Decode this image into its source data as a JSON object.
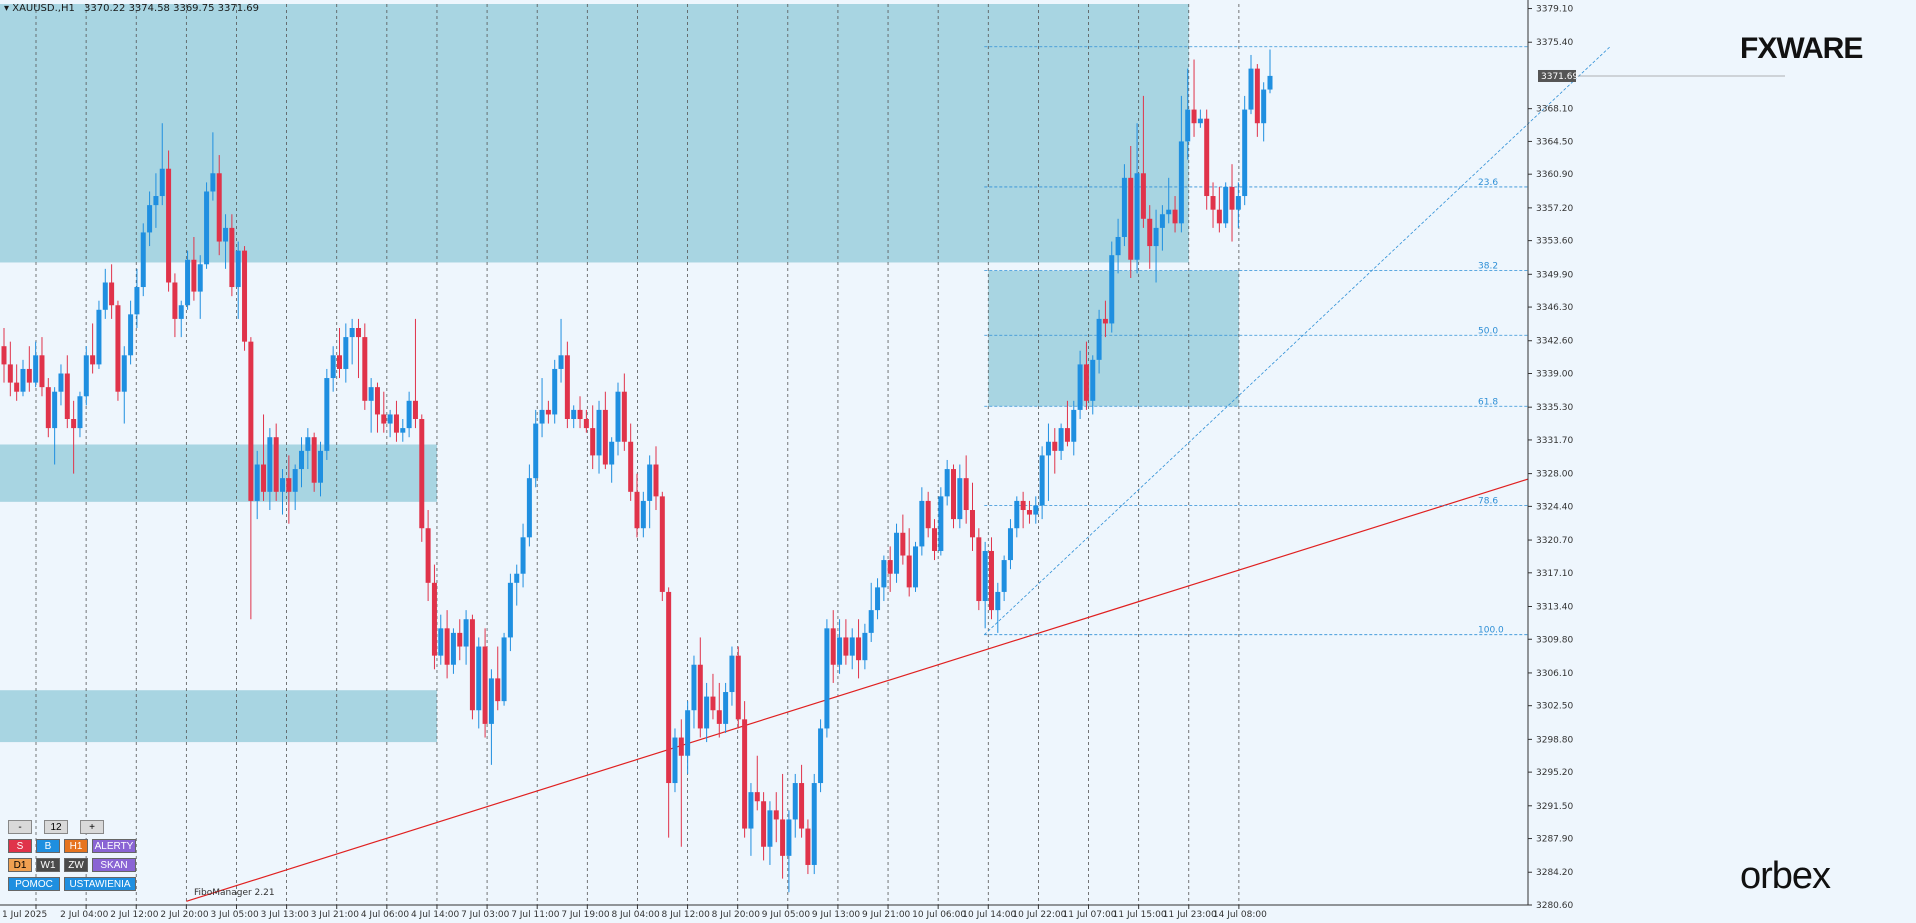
{
  "header": {
    "symbol": "XAUUSD.,H1",
    "ohlc": "3370.22 3374.58 3369.75 3371.69"
  },
  "branding": {
    "top_logo": "FXWARE",
    "bottom_logo": "orbex",
    "indicator": "FiboManager 2.21"
  },
  "controls": {
    "row1": [
      "-",
      "12",
      "+"
    ],
    "row2": [
      "S",
      "B",
      "H1",
      "ALERTY"
    ],
    "row3": [
      "D1",
      "W1",
      "ZW",
      "SKAN"
    ],
    "row4": [
      "POMOC",
      "USTAWIENIA"
    ]
  },
  "colors": {
    "bull": "#1f8fe0",
    "bear": "#e0334a",
    "zone": "#a8d5e2",
    "trendline": "#e02020",
    "fib": "#2e8fd6",
    "background": "#eef6fd"
  },
  "chart_data": {
    "type": "candlestick",
    "ylim": [
      3280.6,
      3379.6
    ],
    "y_ticks": [
      "3379.10",
      "3375.40",
      "3371.69",
      "3368.10",
      "3364.50",
      "3360.90",
      "3357.20",
      "3353.60",
      "3349.90",
      "3346.30",
      "3342.60",
      "3339.00",
      "3335.30",
      "3331.70",
      "3328.00",
      "3324.40",
      "3320.70",
      "3317.10",
      "3313.40",
      "3309.80",
      "3306.10",
      "3302.50",
      "3298.80",
      "3295.20",
      "3291.50",
      "3287.90",
      "3284.20",
      "3280.60"
    ],
    "current_price": "3371.69",
    "x_labels": [
      "1 Jul 2025",
      "2 Jul 04:00",
      "2 Jul 12:00",
      "2 Jul 20:00",
      "3 Jul 05:00",
      "3 Jul 13:00",
      "3 Jul 21:00",
      "4 Jul 06:00",
      "4 Jul 14:00",
      "7 Jul 03:00",
      "7 Jul 11:00",
      "7 Jul 19:00",
      "8 Jul 04:00",
      "8 Jul 12:00",
      "8 Jul 20:00",
      "9 Jul 05:00",
      "9 Jul 13:00",
      "9 Jul 21:00",
      "10 Jul 06:00",
      "10 Jul 14:00",
      "10 Jul 22:00",
      "11 Jul 07:00",
      "11 Jul 15:00",
      "11 Jul 23:00",
      "14 Jul 08:00"
    ],
    "fib_levels": [
      {
        "label": "23.6",
        "price": 3359.5
      },
      {
        "label": "38.2",
        "price": 3350.3
      },
      {
        "label": "50.0",
        "price": 3343.2
      },
      {
        "label": "61.8",
        "price": 3335.4
      },
      {
        "label": "78.6",
        "price": 3324.5
      },
      {
        "label": "100.0",
        "price": 3310.3
      }
    ],
    "fib_top_price": 3374.9,
    "zones": [
      {
        "from_price": 3351.2,
        "to_price": 3379.6,
        "start_label": "1 Jul 2025",
        "end_label": "11 Jul 23:00"
      },
      {
        "from_price": 3335.4,
        "to_price": 3350.3,
        "start_label": "10 Jul 14:00",
        "end_label": "14 Jul 08:00"
      },
      {
        "from_price": 3324.9,
        "to_price": 3331.2,
        "start_label": "1 Jul 2025",
        "end_label": "4 Jul 14:00"
      },
      {
        "from_price": 3298.5,
        "to_price": 3304.2,
        "start_label": "1 Jul 2025",
        "end_label": "4 Jul 14:00"
      }
    ],
    "trendline": {
      "start_price": 3281.0,
      "start_label": "2 Jul 20:00",
      "end_price": 3327.4
    },
    "candles": [
      [
        3342.0,
        3344.0,
        3338.0,
        3340.0
      ],
      [
        3340.0,
        3342.5,
        3336.5,
        3338.0
      ],
      [
        3338.0,
        3340.0,
        3336.0,
        3337.0
      ],
      [
        3337.0,
        3340.5,
        3336.5,
        3339.5
      ],
      [
        3339.5,
        3342.0,
        3337.0,
        3338.0
      ],
      [
        3338.0,
        3342.5,
        3337.5,
        3341.0
      ],
      [
        3341.0,
        3343.0,
        3336.5,
        3337.5
      ],
      [
        3337.5,
        3338.5,
        3332.0,
        3333.0
      ],
      [
        3333.0,
        3337.5,
        3329.0,
        3337.0
      ],
      [
        3337.0,
        3340.0,
        3335.5,
        3339.0
      ],
      [
        3339.0,
        3341.0,
        3333.0,
        3334.0
      ],
      [
        3334.0,
        3336.0,
        3328.0,
        3333.0
      ],
      [
        3333.0,
        3337.0,
        3332.0,
        3336.5
      ],
      [
        3336.5,
        3342.0,
        3335.5,
        3341.0
      ],
      [
        3341.0,
        3344.5,
        3339.0,
        3340.0
      ],
      [
        3340.0,
        3347.0,
        3339.5,
        3346.0
      ],
      [
        3346.0,
        3350.5,
        3345.0,
        3349.0
      ],
      [
        3349.0,
        3351.0,
        3345.0,
        3346.5
      ],
      [
        3346.5,
        3347.0,
        3336.0,
        3337.0
      ],
      [
        3337.0,
        3342.0,
        3333.5,
        3341.0
      ],
      [
        3341.0,
        3347.0,
        3340.0,
        3345.5
      ],
      [
        3345.5,
        3350.5,
        3344.0,
        3348.5
      ],
      [
        3348.5,
        3355.5,
        3347.5,
        3354.5
      ],
      [
        3354.5,
        3359.0,
        3353.0,
        3357.5
      ],
      [
        3357.5,
        3361.0,
        3355.0,
        3358.5
      ],
      [
        3358.5,
        3366.5,
        3357.5,
        3361.5
      ],
      [
        3361.5,
        3363.5,
        3348.0,
        3349.0
      ],
      [
        3349.0,
        3350.0,
        3343.0,
        3345.0
      ],
      [
        3345.0,
        3347.0,
        3343.0,
        3346.5
      ],
      [
        3346.5,
        3352.5,
        3346.0,
        3351.5
      ],
      [
        3351.5,
        3354.0,
        3347.0,
        3348.0
      ],
      [
        3348.0,
        3352.0,
        3345.0,
        3351.0
      ],
      [
        3351.0,
        3360.0,
        3350.5,
        3359.0
      ],
      [
        3359.0,
        3365.5,
        3358.0,
        3361.0
      ],
      [
        3361.0,
        3363.0,
        3352.0,
        3353.5
      ],
      [
        3353.5,
        3356.5,
        3350.5,
        3355.0
      ],
      [
        3355.0,
        3356.5,
        3347.5,
        3348.5
      ],
      [
        3348.5,
        3353.5,
        3345.0,
        3352.5
      ],
      [
        3352.5,
        3353.0,
        3341.5,
        3342.5
      ],
      [
        3342.5,
        3343.0,
        3312.0,
        3325.0
      ],
      [
        3325.0,
        3330.5,
        3323.0,
        3329.0
      ],
      [
        3329.0,
        3334.5,
        3325.0,
        3326.0
      ],
      [
        3326.0,
        3333.0,
        3324.0,
        3332.0
      ],
      [
        3332.0,
        3333.5,
        3325.0,
        3326.0
      ],
      [
        3326.0,
        3328.5,
        3323.5,
        3327.5
      ],
      [
        3327.5,
        3330.0,
        3322.5,
        3326.0
      ],
      [
        3326.0,
        3329.0,
        3324.0,
        3328.5
      ],
      [
        3328.5,
        3332.0,
        3326.5,
        3330.5
      ],
      [
        3330.5,
        3333.0,
        3328.5,
        3332.0
      ],
      [
        3332.0,
        3332.5,
        3326.0,
        3327.0
      ],
      [
        3327.0,
        3331.5,
        3325.5,
        3330.5
      ],
      [
        3330.5,
        3339.5,
        3329.5,
        3338.5
      ],
      [
        3338.5,
        3342.0,
        3337.0,
        3341.0
      ],
      [
        3341.0,
        3344.0,
        3338.5,
        3339.5
      ],
      [
        3339.5,
        3344.5,
        3338.0,
        3343.0
      ],
      [
        3343.0,
        3345.0,
        3340.0,
        3344.0
      ],
      [
        3344.0,
        3345.0,
        3338.5,
        3343.0
      ],
      [
        3343.0,
        3344.5,
        3335.0,
        3336.0
      ],
      [
        3336.0,
        3338.5,
        3332.5,
        3337.5
      ],
      [
        3337.5,
        3338.0,
        3332.5,
        3334.5
      ],
      [
        3334.5,
        3337.0,
        3332.5,
        3333.5
      ],
      [
        3333.5,
        3335.0,
        3332.0,
        3334.5
      ],
      [
        3334.5,
        3336.0,
        3331.5,
        3332.5
      ],
      [
        3332.5,
        3334.0,
        3331.5,
        3333.0
      ],
      [
        3333.0,
        3337.0,
        3332.0,
        3336.0
      ],
      [
        3336.0,
        3345.0,
        3333.0,
        3334.0
      ],
      [
        3334.0,
        3334.5,
        3320.5,
        3322.0
      ],
      [
        3322.0,
        3324.0,
        3314.0,
        3316.0
      ],
      [
        3316.0,
        3318.0,
        3306.5,
        3308.0
      ],
      [
        3308.0,
        3312.5,
        3307.0,
        3311.0
      ],
      [
        3311.0,
        3313.0,
        3305.5,
        3307.0
      ],
      [
        3307.0,
        3311.0,
        3306.0,
        3310.5
      ],
      [
        3310.5,
        3312.0,
        3307.5,
        3309.0
      ],
      [
        3309.0,
        3313.0,
        3307.0,
        3312.0
      ],
      [
        3312.0,
        3312.5,
        3301.0,
        3302.0
      ],
      [
        3302.0,
        3310.0,
        3300.0,
        3309.0
      ],
      [
        3309.0,
        3311.0,
        3299.0,
        3300.5
      ],
      [
        3300.5,
        3306.5,
        3296.0,
        3305.5
      ],
      [
        3305.5,
        3309.0,
        3302.0,
        3303.0
      ],
      [
        3303.0,
        3310.5,
        3302.5,
        3310.0
      ],
      [
        3310.0,
        3317.0,
        3308.5,
        3316.0
      ],
      [
        3316.0,
        3318.0,
        3313.5,
        3317.0
      ],
      [
        3317.0,
        3322.5,
        3315.5,
        3321.0
      ],
      [
        3321.0,
        3329.0,
        3320.0,
        3327.5
      ],
      [
        3327.5,
        3335.0,
        3326.5,
        3333.5
      ],
      [
        3333.5,
        3338.5,
        3332.0,
        3335.0
      ],
      [
        3335.0,
        3336.0,
        3333.5,
        3334.5
      ],
      [
        3334.5,
        3340.5,
        3333.5,
        3339.5
      ],
      [
        3339.5,
        3345.0,
        3338.0,
        3341.0
      ],
      [
        3341.0,
        3342.5,
        3333.0,
        3334.0
      ],
      [
        3334.0,
        3335.5,
        3333.0,
        3335.0
      ],
      [
        3335.0,
        3336.5,
        3333.0,
        3334.0
      ],
      [
        3334.0,
        3335.0,
        3332.5,
        3333.0
      ],
      [
        3333.0,
        3335.5,
        3328.5,
        3330.0
      ],
      [
        3330.0,
        3336.0,
        3328.0,
        3335.0
      ],
      [
        3335.0,
        3337.0,
        3328.5,
        3329.0
      ],
      [
        3329.0,
        3332.0,
        3327.0,
        3331.5
      ],
      [
        3331.5,
        3338.0,
        3330.0,
        3337.0
      ],
      [
        3337.0,
        3339.0,
        3330.5,
        3331.5
      ],
      [
        3331.5,
        3333.5,
        3325.0,
        3326.0
      ],
      [
        3326.0,
        3328.0,
        3321.0,
        3322.0
      ],
      [
        3322.0,
        3326.0,
        3321.0,
        3325.0
      ],
      [
        3325.0,
        3330.0,
        3322.0,
        3329.0
      ],
      [
        3329.0,
        3331.0,
        3324.0,
        3325.5
      ],
      [
        3325.5,
        3326.0,
        3314.0,
        3315.0
      ],
      [
        3315.0,
        3315.5,
        3288.0,
        3294.0
      ],
      [
        3294.0,
        3300.0,
        3293.0,
        3299.0
      ],
      [
        3299.0,
        3301.0,
        3287.0,
        3297.0
      ],
      [
        3297.0,
        3303.0,
        3295.0,
        3302.0
      ],
      [
        3302.0,
        3308.0,
        3300.0,
        3307.0
      ],
      [
        3307.0,
        3310.0,
        3299.0,
        3300.0
      ],
      [
        3300.0,
        3305.0,
        3298.5,
        3303.5
      ],
      [
        3303.5,
        3306.0,
        3301.0,
        3302.0
      ],
      [
        3302.0,
        3305.0,
        3299.0,
        3300.5
      ],
      [
        3300.5,
        3305.0,
        3299.5,
        3304.0
      ],
      [
        3304.0,
        3309.0,
        3302.5,
        3308.0
      ],
      [
        3308.0,
        3309.0,
        3300.0,
        3301.0
      ],
      [
        3301.0,
        3303.0,
        3288.0,
        3289.0
      ],
      [
        3289.0,
        3294.0,
        3286.0,
        3293.0
      ],
      [
        3293.0,
        3297.0,
        3291.0,
        3292.0
      ],
      [
        3292.0,
        3293.0,
        3285.5,
        3287.0
      ],
      [
        3287.0,
        3292.0,
        3285.0,
        3291.0
      ],
      [
        3291.0,
        3293.0,
        3287.5,
        3290.0
      ],
      [
        3290.0,
        3295.0,
        3283.5,
        3286.0
      ],
      [
        3286.0,
        3291.0,
        3282.0,
        3290.0
      ],
      [
        3290.0,
        3295.0,
        3288.0,
        3294.0
      ],
      [
        3294.0,
        3296.0,
        3288.0,
        3289.0
      ],
      [
        3289.0,
        3290.0,
        3284.0,
        3285.0
      ],
      [
        3285.0,
        3295.0,
        3284.0,
        3294.0
      ],
      [
        3294.0,
        3301.0,
        3293.0,
        3300.0
      ],
      [
        3300.0,
        3312.0,
        3299.0,
        3311.0
      ],
      [
        3311.0,
        3313.0,
        3305.0,
        3307.0
      ],
      [
        3307.0,
        3312.0,
        3306.0,
        3310.0
      ],
      [
        3310.0,
        3312.0,
        3307.0,
        3308.0
      ],
      [
        3308.0,
        3311.0,
        3306.5,
        3310.0
      ],
      [
        3310.0,
        3312.0,
        3305.5,
        3307.5
      ],
      [
        3307.5,
        3311.5,
        3306.5,
        3310.5
      ],
      [
        3310.5,
        3316.0,
        3309.5,
        3313.0
      ],
      [
        3313.0,
        3316.5,
        3312.0,
        3315.5
      ],
      [
        3315.5,
        3319.0,
        3314.0,
        3318.5
      ],
      [
        3318.5,
        3320.0,
        3315.0,
        3317.0
      ],
      [
        3317.0,
        3322.5,
        3316.0,
        3321.5
      ],
      [
        3321.5,
        3323.5,
        3318.0,
        3319.0
      ],
      [
        3319.0,
        3322.0,
        3314.5,
        3315.5
      ],
      [
        3315.5,
        3320.5,
        3315.0,
        3320.0
      ],
      [
        3320.0,
        3326.5,
        3319.0,
        3325.0
      ],
      [
        3325.0,
        3326.0,
        3321.0,
        3322.0
      ],
      [
        3322.0,
        3323.0,
        3318.5,
        3319.5
      ],
      [
        3319.5,
        3326.5,
        3319.0,
        3325.5
      ],
      [
        3325.5,
        3329.5,
        3324.5,
        3328.5
      ],
      [
        3328.5,
        3329.0,
        3322.0,
        3323.0
      ],
      [
        3323.0,
        3329.0,
        3322.0,
        3327.5
      ],
      [
        3327.5,
        3330.0,
        3322.5,
        3324.0
      ],
      [
        3324.0,
        3327.0,
        3319.5,
        3321.0
      ],
      [
        3321.0,
        3322.0,
        3313.0,
        3314.0
      ],
      [
        3314.0,
        3320.5,
        3311.0,
        3319.5
      ],
      [
        3319.5,
        3321.0,
        3312.0,
        3313.0
      ],
      [
        3313.0,
        3316.0,
        3310.5,
        3315.0
      ],
      [
        3315.0,
        3319.0,
        3314.0,
        3318.5
      ],
      [
        3318.5,
        3323.0,
        3317.5,
        3322.0
      ],
      [
        3322.0,
        3325.5,
        3321.0,
        3325.0
      ],
      [
        3325.0,
        3326.0,
        3322.0,
        3324.0
      ],
      [
        3324.0,
        3325.0,
        3322.5,
        3323.5
      ],
      [
        3323.5,
        3325.5,
        3322.5,
        3324.5
      ],
      [
        3324.5,
        3331.0,
        3323.0,
        3330.0
      ],
      [
        3330.0,
        3333.5,
        3325.0,
        3331.5
      ],
      [
        3331.5,
        3333.0,
        3328.0,
        3330.5
      ],
      [
        3330.5,
        3333.5,
        3329.5,
        3333.0
      ],
      [
        3333.0,
        3336.0,
        3331.0,
        3331.5
      ],
      [
        3331.5,
        3336.0,
        3330.0,
        3335.0
      ],
      [
        3335.0,
        3341.5,
        3334.0,
        3340.0
      ],
      [
        3340.0,
        3342.5,
        3335.0,
        3336.0
      ],
      [
        3336.0,
        3341.0,
        3334.5,
        3340.5
      ],
      [
        3340.5,
        3346.0,
        3339.0,
        3345.0
      ],
      [
        3345.0,
        3347.0,
        3343.0,
        3344.5
      ],
      [
        3344.5,
        3353.5,
        3343.5,
        3352.0
      ],
      [
        3352.0,
        3356.0,
        3350.0,
        3354.0
      ],
      [
        3354.0,
        3362.0,
        3353.0,
        3360.5
      ],
      [
        3360.5,
        3364.0,
        3349.5,
        3351.5
      ],
      [
        3351.5,
        3366.5,
        3350.0,
        3361.0
      ],
      [
        3361.0,
        3369.5,
        3355.0,
        3356.0
      ],
      [
        3356.0,
        3357.5,
        3350.5,
        3353.0
      ],
      [
        3353.0,
        3357.0,
        3349.0,
        3355.0
      ],
      [
        3355.0,
        3357.5,
        3352.5,
        3356.5
      ],
      [
        3356.5,
        3360.5,
        3355.5,
        3357.0
      ],
      [
        3357.0,
        3358.5,
        3354.5,
        3355.5
      ],
      [
        3355.5,
        3369.5,
        3354.5,
        3364.5
      ],
      [
        3364.5,
        3372.5,
        3362.5,
        3368.0
      ],
      [
        3368.0,
        3373.5,
        3365.0,
        3366.5
      ],
      [
        3366.5,
        3368.0,
        3366.0,
        3367.0
      ],
      [
        3367.0,
        3368.0,
        3357.0,
        3358.5
      ],
      [
        3358.5,
        3360.0,
        3355.0,
        3357.0
      ],
      [
        3357.0,
        3359.5,
        3354.5,
        3355.5
      ],
      [
        3355.5,
        3360.0,
        3355.0,
        3359.5
      ],
      [
        3359.5,
        3362.0,
        3353.5,
        3357.0
      ],
      [
        3357.0,
        3360.0,
        3355.0,
        3358.5
      ],
      [
        3358.5,
        3369.5,
        3357.5,
        3368.0
      ],
      [
        3368.0,
        3374.0,
        3367.5,
        3372.5
      ],
      [
        3372.5,
        3373.0,
        3365.0,
        3366.5
      ],
      [
        3366.5,
        3371.0,
        3364.5,
        3370.2
      ],
      [
        3370.2,
        3374.6,
        3369.8,
        3371.7
      ]
    ]
  }
}
